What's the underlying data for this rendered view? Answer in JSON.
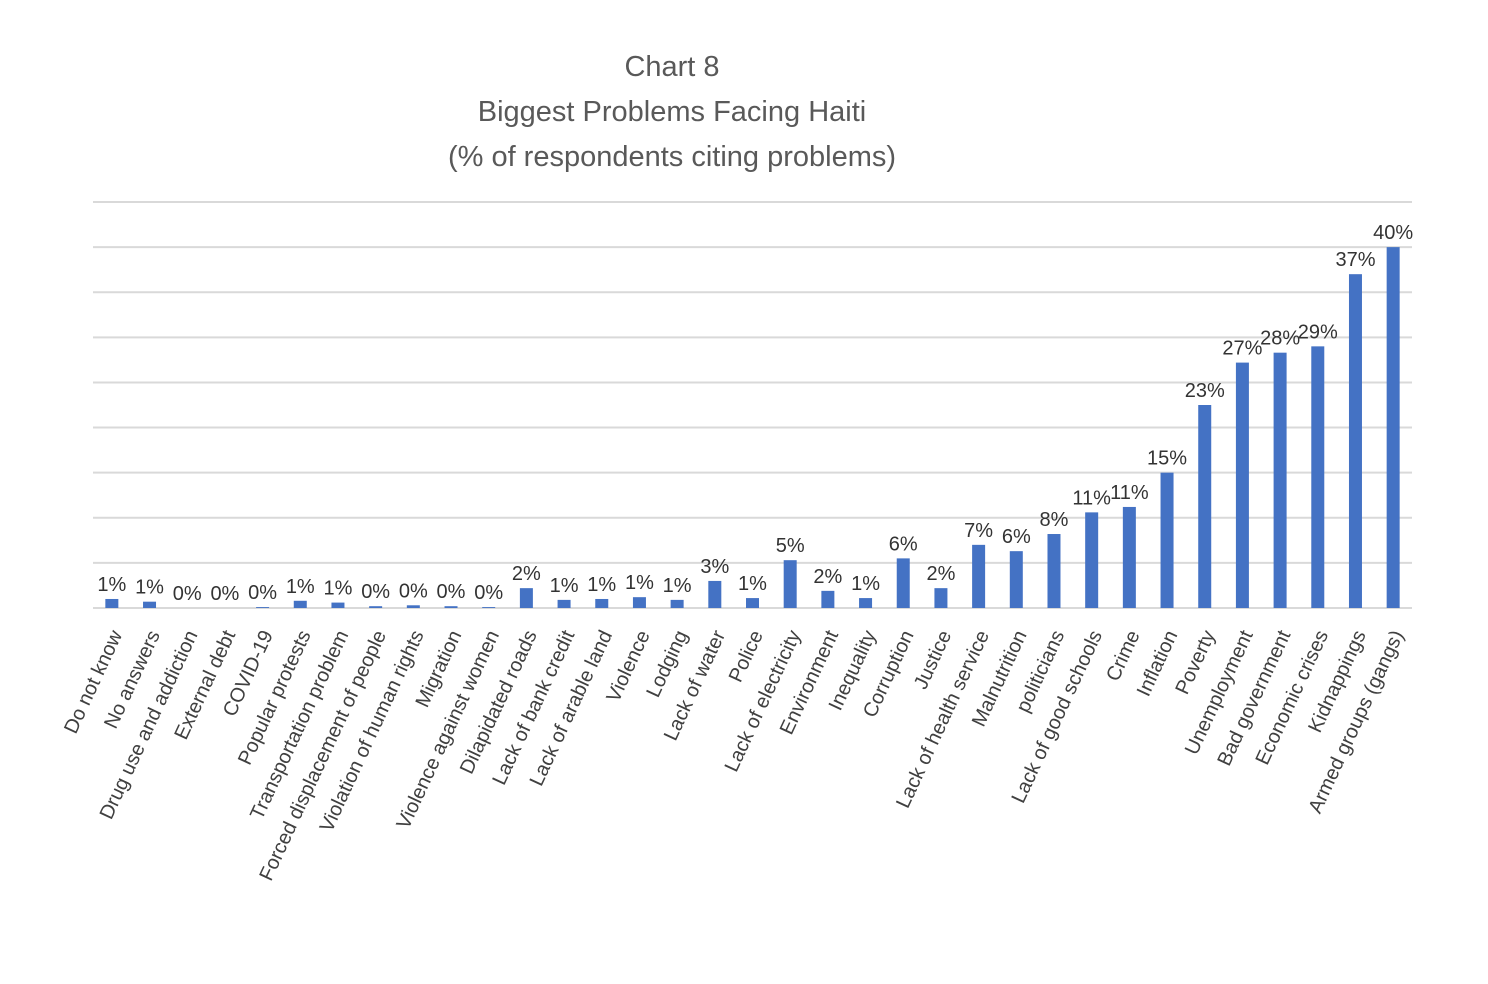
{
  "chart_data": {
    "type": "bar",
    "title": [
      "Chart 8",
      "Biggest Problems Facing Haiti",
      "(% of respondents citing problems)"
    ],
    "categories": [
      "Do not know",
      "No answers",
      "Drug use and addiction",
      "External debt",
      "COVID-19",
      "Popular protests",
      "Transportation problem",
      "Forced displacement of people",
      "Violation of human rights",
      "Migration",
      "Violence against women",
      "Dilapidated roads",
      "Lack of bank credit",
      "Lack of arable land",
      "Violence",
      "Lodging",
      "Lack of water",
      "Police",
      "Lack of electricity",
      "Environment",
      "Inequality",
      "Corruption",
      "Justice",
      "Lack of health service",
      "Malnutrition",
      "politicians",
      "Lack of good schools",
      "Crime",
      "Inflation",
      "Poverty",
      "Unemployment",
      "Bad government",
      "Economic crises",
      "Kidnappings",
      "Armed groups (gangs)"
    ],
    "values": [
      1.0,
      0.7,
      0,
      0,
      0.1,
      0.8,
      0.6,
      0.2,
      0.3,
      0.2,
      0.1,
      2.2,
      0.9,
      1.0,
      1.2,
      0.9,
      3.0,
      1.1,
      5.3,
      1.9,
      1.1,
      5.5,
      2.2,
      7.0,
      6.3,
      8.2,
      10.6,
      11.2,
      15.0,
      22.5,
      27.2,
      28.3,
      29.0,
      37.0,
      40.0
    ],
    "value_labels": [
      "1%",
      "1%",
      "0%",
      "0%",
      "0%",
      "1%",
      "1%",
      "0%",
      "0%",
      "0%",
      "0%",
      "2%",
      "1%",
      "1%",
      "1%",
      "1%",
      "3%",
      "1%",
      "5%",
      "2%",
      "1%",
      "6%",
      "2%",
      "7%",
      "6%",
      "8%",
      "11%",
      "11%",
      "15%",
      "23%",
      "27%",
      "28%",
      "29%",
      "37%",
      "40%"
    ],
    "color": "#4472c4",
    "ylim": [
      0,
      45
    ],
    "yticks": [
      0,
      5,
      10,
      15,
      20,
      25,
      30,
      35,
      40,
      45
    ],
    "grid": true
  }
}
